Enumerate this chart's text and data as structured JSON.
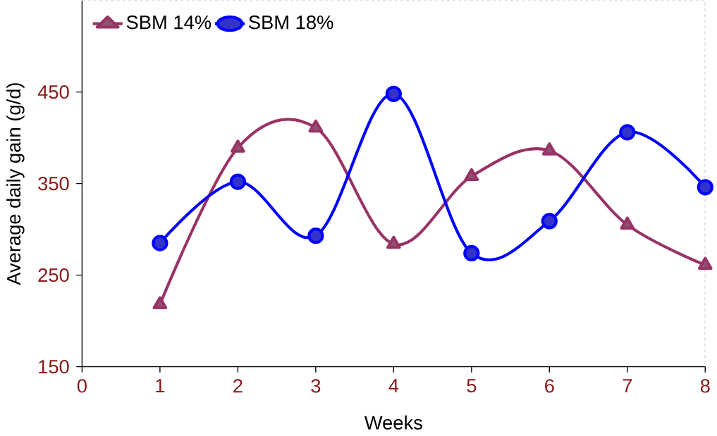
{
  "chart_data": {
    "type": "line",
    "xlabel": "Weeks",
    "ylabel": "Average daily gain (g/d)",
    "x": [
      1,
      2,
      3,
      4,
      5,
      6,
      7,
      8
    ],
    "series": [
      {
        "name": "SBM 14%",
        "color": "#993366",
        "marker": "triangle",
        "values": [
          218,
          389,
          411,
          284,
          358,
          386,
          305,
          261
        ]
      },
      {
        "name": "SBM 18%",
        "color": "#0000ff",
        "marker": "circle",
        "values": [
          285,
          352,
          293,
          448,
          274,
          309,
          406,
          346
        ]
      }
    ],
    "xlim": [
      0,
      8
    ],
    "xticks": [
      0,
      1,
      2,
      3,
      4,
      5,
      6,
      7,
      8
    ],
    "ylim": [
      150,
      550
    ],
    "yticks": [
      150,
      250,
      350,
      450
    ],
    "legend": "top left",
    "grid": false,
    "line_style": "solid"
  }
}
